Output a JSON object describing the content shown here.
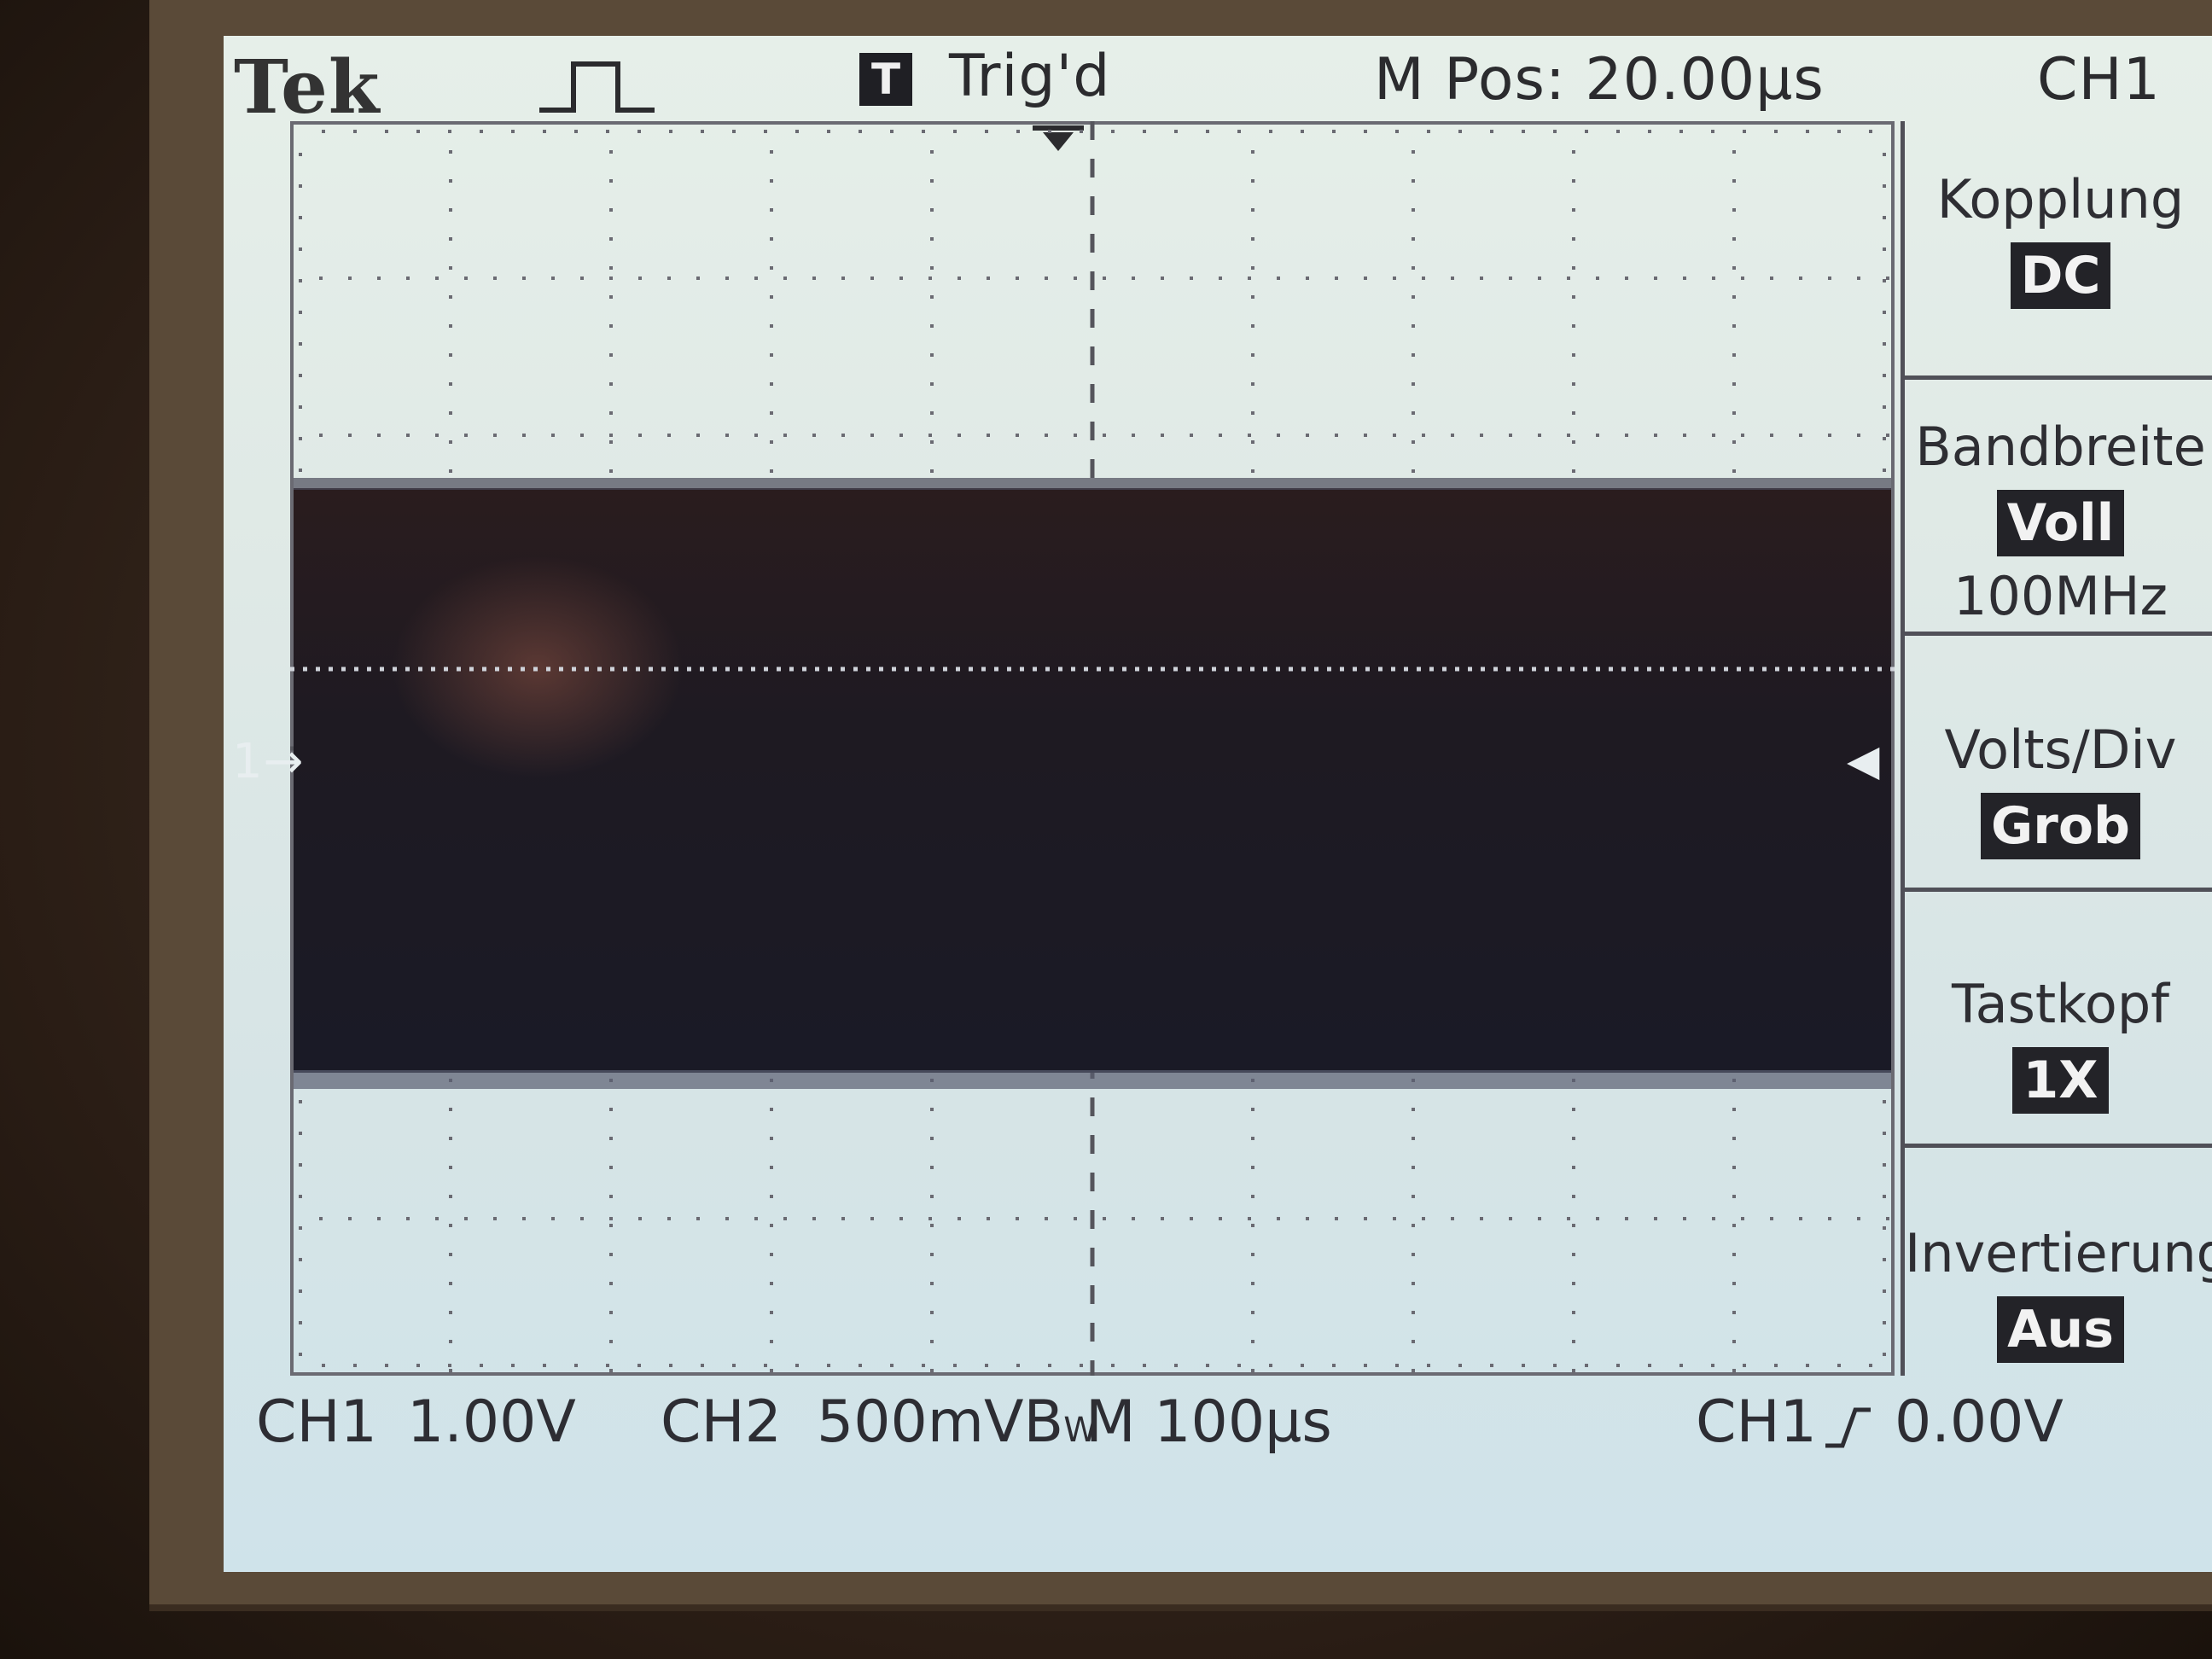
{
  "header": {
    "brand": "Tek",
    "trigger_badge": "T",
    "trigger_status": "Trig'd",
    "position": "M Pos: 20.00µs",
    "channel": "CH1"
  },
  "screen": {
    "ground_marker": "1→",
    "trigger_level_marker": "◀"
  },
  "menu": {
    "items": [
      {
        "title": "Kopplung",
        "value": "DC"
      },
      {
        "title": "Bandbreite",
        "value": "Voll",
        "extra": "100MHz"
      },
      {
        "title": "Volts/Div",
        "value": "Grob"
      },
      {
        "title": "Tastkopf",
        "value": "1X"
      },
      {
        "title": "Invertierung",
        "value": "Aus"
      }
    ]
  },
  "footer": {
    "ch1_label": "CH1",
    "ch1_scale": "1.00V",
    "ch2_label": "CH2",
    "ch2_scale": "500mVB",
    "bw_subscript": "W",
    "timebase": "M 100µs",
    "trigger_source": "CH1",
    "trigger_slope_icon": "rising-edge",
    "trigger_level": "0.00V"
  },
  "colors": {
    "screen_bg": "#dfe9e6",
    "trace_band": "#1c1a24",
    "text": "#2b2b2e"
  }
}
